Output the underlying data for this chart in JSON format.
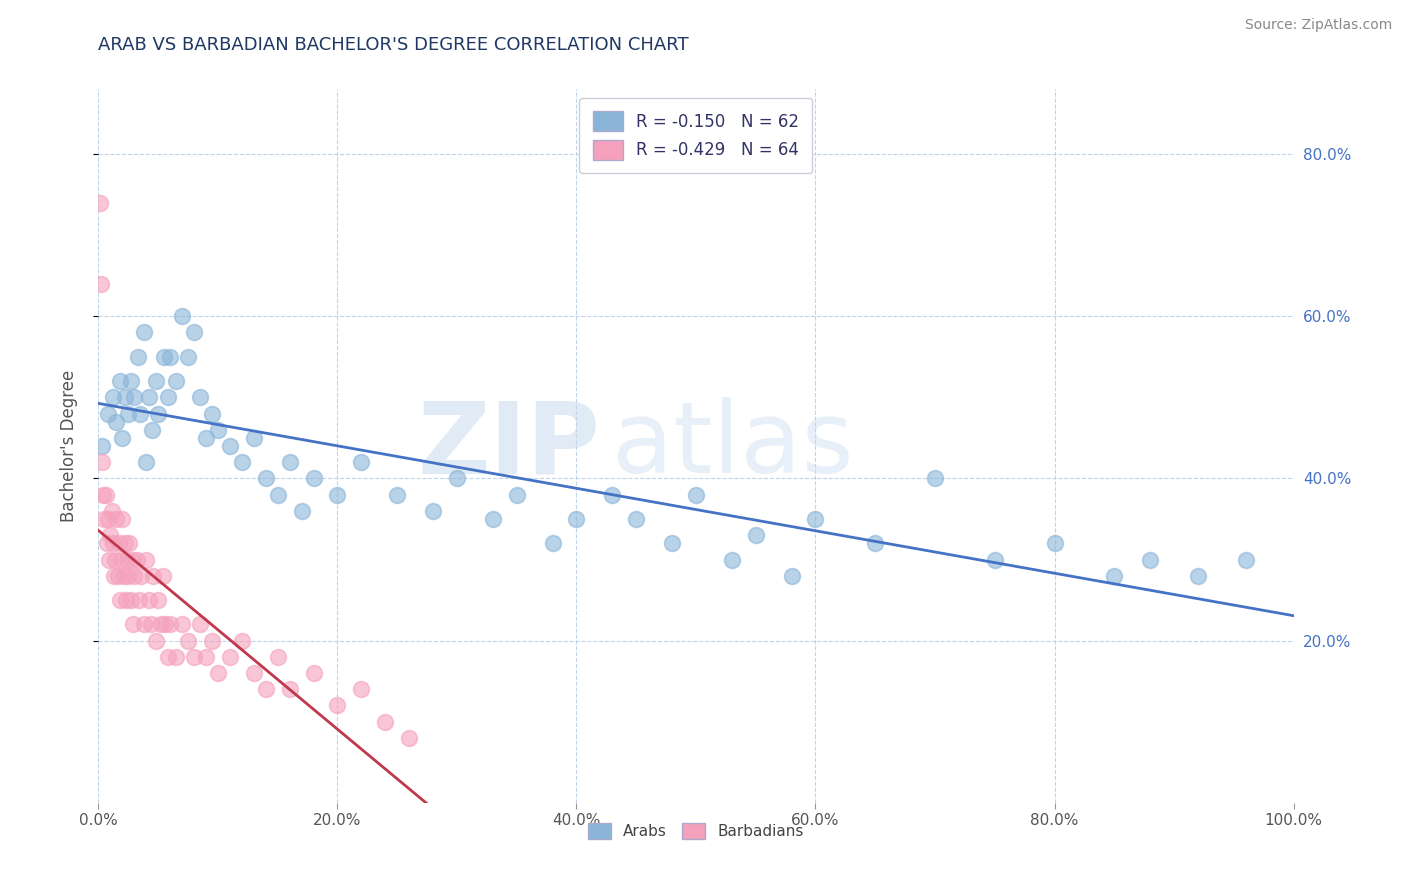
{
  "title": "ARAB VS BARBADIAN BACHELOR'S DEGREE CORRELATION CHART",
  "source": "Source: ZipAtlas.com",
  "ylabel": "Bachelor's Degree",
  "xlim": [
    0.0,
    1.0
  ],
  "ylim": [
    0.0,
    0.88
  ],
  "xtick_labels": [
    "0.0%",
    "20.0%",
    "40.0%",
    "60.0%",
    "80.0%",
    "100.0%"
  ],
  "xtick_vals": [
    0.0,
    0.2,
    0.4,
    0.6,
    0.8,
    1.0
  ],
  "ytick_labels": [
    "20.0%",
    "40.0%",
    "60.0%",
    "80.0%"
  ],
  "ytick_vals": [
    0.2,
    0.4,
    0.6,
    0.8
  ],
  "arab_color": "#8ab4d8",
  "barbadian_color": "#f5a0bc",
  "arab_line_color": "#4472c4",
  "barbadian_line_color": "#c0384b",
  "arab_R": -0.15,
  "arab_N": 62,
  "barbadian_R": -0.429,
  "barbadian_N": 64,
  "title_color": "#1f3864",
  "right_tick_color": "#4472c4",
  "watermark_zip": "ZIP",
  "watermark_atlas": "atlas",
  "legend_arab_label": "Arabs",
  "legend_barbadian_label": "Barbadians",
  "arab_scatter_x": [
    0.003,
    0.008,
    0.012,
    0.015,
    0.018,
    0.02,
    0.022,
    0.025,
    0.027,
    0.03,
    0.033,
    0.035,
    0.038,
    0.04,
    0.042,
    0.045,
    0.048,
    0.05,
    0.055,
    0.058,
    0.06,
    0.065,
    0.07,
    0.075,
    0.08,
    0.085,
    0.09,
    0.095,
    0.1,
    0.11,
    0.12,
    0.13,
    0.14,
    0.15,
    0.16,
    0.17,
    0.18,
    0.2,
    0.22,
    0.25,
    0.28,
    0.3,
    0.33,
    0.35,
    0.38,
    0.4,
    0.43,
    0.45,
    0.48,
    0.5,
    0.53,
    0.55,
    0.58,
    0.6,
    0.65,
    0.7,
    0.75,
    0.8,
    0.85,
    0.88,
    0.92,
    0.96
  ],
  "arab_scatter_y": [
    0.44,
    0.48,
    0.5,
    0.47,
    0.52,
    0.45,
    0.5,
    0.48,
    0.52,
    0.5,
    0.55,
    0.48,
    0.58,
    0.42,
    0.5,
    0.46,
    0.52,
    0.48,
    0.55,
    0.5,
    0.55,
    0.52,
    0.6,
    0.55,
    0.58,
    0.5,
    0.45,
    0.48,
    0.46,
    0.44,
    0.42,
    0.45,
    0.4,
    0.38,
    0.42,
    0.36,
    0.4,
    0.38,
    0.42,
    0.38,
    0.36,
    0.4,
    0.35,
    0.38,
    0.32,
    0.35,
    0.38,
    0.35,
    0.32,
    0.38,
    0.3,
    0.33,
    0.28,
    0.35,
    0.32,
    0.4,
    0.3,
    0.32,
    0.28,
    0.3,
    0.28,
    0.3
  ],
  "barbadian_scatter_x": [
    0.001,
    0.002,
    0.003,
    0.004,
    0.005,
    0.006,
    0.007,
    0.008,
    0.009,
    0.01,
    0.011,
    0.012,
    0.013,
    0.014,
    0.015,
    0.016,
    0.017,
    0.018,
    0.019,
    0.02,
    0.021,
    0.022,
    0.023,
    0.024,
    0.025,
    0.026,
    0.027,
    0.028,
    0.029,
    0.03,
    0.032,
    0.034,
    0.036,
    0.038,
    0.04,
    0.042,
    0.044,
    0.046,
    0.048,
    0.05,
    0.052,
    0.054,
    0.056,
    0.058,
    0.06,
    0.065,
    0.07,
    0.075,
    0.08,
    0.085,
    0.09,
    0.095,
    0.1,
    0.11,
    0.12,
    0.13,
    0.14,
    0.15,
    0.16,
    0.18,
    0.2,
    0.22,
    0.24,
    0.26
  ],
  "barbadian_scatter_y": [
    0.74,
    0.64,
    0.42,
    0.38,
    0.35,
    0.38,
    0.32,
    0.35,
    0.3,
    0.33,
    0.36,
    0.32,
    0.28,
    0.3,
    0.35,
    0.28,
    0.32,
    0.25,
    0.3,
    0.35,
    0.28,
    0.32,
    0.25,
    0.3,
    0.28,
    0.32,
    0.25,
    0.3,
    0.22,
    0.28,
    0.3,
    0.25,
    0.28,
    0.22,
    0.3,
    0.25,
    0.22,
    0.28,
    0.2,
    0.25,
    0.22,
    0.28,
    0.22,
    0.18,
    0.22,
    0.18,
    0.22,
    0.2,
    0.18,
    0.22,
    0.18,
    0.2,
    0.16,
    0.18,
    0.2,
    0.16,
    0.14,
    0.18,
    0.14,
    0.16,
    0.12,
    0.14,
    0.1,
    0.08
  ]
}
